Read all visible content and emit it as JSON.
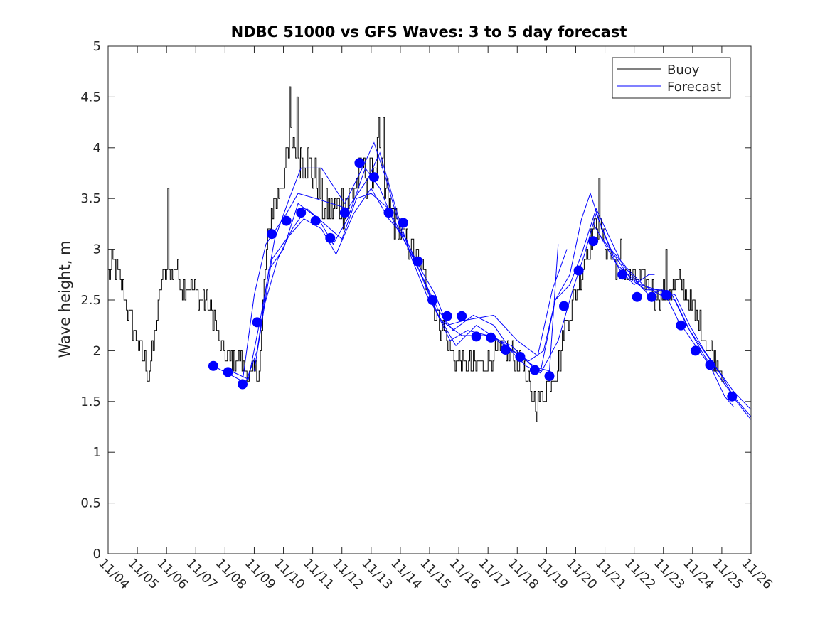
{
  "chart_data": {
    "type": "line",
    "title": "NDBC 51000 vs GFS Waves: 3 to 5 day forecast",
    "xlabel": "",
    "ylabel": "Wave height, m",
    "ylim": [
      0,
      5
    ],
    "xlim_days": [
      0,
      22
    ],
    "y_ticks": [
      "0",
      "0.5",
      "1",
      "1.5",
      "2",
      "2.5",
      "3",
      "3.5",
      "4",
      "4.5",
      "5"
    ],
    "x_ticks": [
      "11/04",
      "11/05",
      "11/06",
      "11/07",
      "11/08",
      "11/09",
      "11/10",
      "11/11",
      "11/12",
      "11/13",
      "11/14",
      "11/15",
      "11/16",
      "11/17",
      "11/18",
      "11/19",
      "11/20",
      "11/21",
      "11/22",
      "11/23",
      "11/24",
      "11/25",
      "11/26"
    ],
    "legend": {
      "position": "top-right",
      "entries": [
        {
          "label": "Buoy",
          "color": "#000000"
        },
        {
          "label": "Forecast",
          "color": "#0000ff"
        }
      ]
    },
    "buoy_color": "#000000",
    "forecast_color": "#0000ff",
    "buoy_anchors": [
      [
        0.0,
        2.75
      ],
      [
        0.15,
        2.85
      ],
      [
        0.45,
        2.65
      ],
      [
        0.7,
        2.35
      ],
      [
        0.95,
        2.15
      ],
      [
        1.25,
        1.9
      ],
      [
        1.38,
        1.75
      ],
      [
        1.55,
        2.05
      ],
      [
        1.75,
        2.55
      ],
      [
        1.95,
        2.8
      ],
      [
        2.1,
        2.75
      ],
      [
        2.3,
        2.85
      ],
      [
        2.55,
        2.6
      ],
      [
        2.8,
        2.65
      ],
      [
        3.0,
        2.55
      ],
      [
        3.3,
        2.5
      ],
      [
        3.6,
        2.35
      ],
      [
        3.85,
        2.0
      ],
      [
        4.1,
        1.9
      ],
      [
        4.4,
        1.95
      ],
      [
        4.7,
        1.8
      ],
      [
        4.9,
        1.72
      ],
      [
        5.1,
        1.8
      ],
      [
        5.2,
        1.9
      ],
      [
        5.35,
        2.75
      ],
      [
        5.55,
        3.35
      ],
      [
        5.8,
        3.55
      ],
      [
        6.1,
        3.85
      ],
      [
        6.3,
        4.1
      ],
      [
        6.5,
        3.95
      ],
      [
        6.8,
        3.9
      ],
      [
        7.1,
        3.7
      ],
      [
        7.4,
        3.4
      ],
      [
        7.6,
        3.35
      ],
      [
        7.9,
        3.4
      ],
      [
        8.2,
        3.5
      ],
      [
        8.45,
        3.6
      ],
      [
        8.7,
        3.8
      ],
      [
        8.95,
        3.7
      ],
      [
        9.2,
        3.9
      ],
      [
        9.4,
        3.6
      ],
      [
        9.65,
        3.4
      ],
      [
        9.9,
        3.25
      ],
      [
        10.15,
        3.1
      ],
      [
        10.4,
        3.0
      ],
      [
        10.7,
        2.85
      ],
      [
        10.95,
        2.6
      ],
      [
        11.2,
        2.4
      ],
      [
        11.45,
        2.2
      ],
      [
        11.7,
        2.0
      ],
      [
        11.95,
        1.9
      ],
      [
        12.3,
        1.85
      ],
      [
        12.7,
        1.85
      ],
      [
        13.1,
        1.95
      ],
      [
        13.5,
        2.0
      ],
      [
        13.9,
        1.95
      ],
      [
        14.2,
        1.9
      ],
      [
        14.4,
        1.6
      ],
      [
        14.6,
        1.5
      ],
      [
        14.8,
        1.55
      ],
      [
        15.0,
        1.65
      ],
      [
        15.2,
        1.75
      ],
      [
        15.4,
        1.85
      ],
      [
        15.6,
        2.2
      ],
      [
        15.9,
        2.45
      ],
      [
        16.1,
        2.7
      ],
      [
        16.3,
        2.9
      ],
      [
        16.5,
        3.1
      ],
      [
        16.7,
        3.3
      ],
      [
        16.9,
        3.1
      ],
      [
        17.1,
        3.0
      ],
      [
        17.4,
        2.85
      ],
      [
        17.7,
        2.75
      ],
      [
        18.1,
        2.7
      ],
      [
        18.4,
        2.65
      ],
      [
        18.7,
        2.55
      ],
      [
        19.0,
        2.55
      ],
      [
        19.3,
        2.6
      ],
      [
        19.55,
        2.7
      ],
      [
        19.8,
        2.55
      ],
      [
        20.1,
        2.35
      ],
      [
        20.4,
        2.15
      ],
      [
        20.7,
        1.95
      ],
      [
        20.95,
        1.85
      ],
      [
        21.1,
        1.7
      ]
    ],
    "buoy_spikes": [
      [
        2.05,
        3.6
      ],
      [
        6.2,
        4.6
      ],
      [
        6.45,
        4.5
      ],
      [
        9.25,
        4.3
      ],
      [
        9.4,
        4.3
      ],
      [
        14.65,
        1.3
      ],
      [
        16.8,
        3.7
      ],
      [
        17.55,
        3.1
      ],
      [
        19.1,
        3.0
      ]
    ],
    "forecast_markers": [
      [
        3.6,
        1.85
      ],
      [
        4.1,
        1.79
      ],
      [
        4.6,
        1.67
      ],
      [
        5.1,
        2.28
      ],
      [
        5.6,
        3.15
      ],
      [
        6.1,
        3.28
      ],
      [
        6.6,
        3.36
      ],
      [
        7.1,
        3.28
      ],
      [
        7.6,
        3.11
      ],
      [
        8.1,
        3.36
      ],
      [
        8.6,
        3.85
      ],
      [
        9.1,
        3.71
      ],
      [
        9.6,
        3.36
      ],
      [
        10.1,
        3.26
      ],
      [
        10.6,
        2.88
      ],
      [
        11.1,
        2.5
      ],
      [
        11.6,
        2.34
      ],
      [
        12.1,
        2.34
      ],
      [
        12.6,
        2.14
      ],
      [
        13.1,
        2.13
      ],
      [
        13.6,
        2.01
      ],
      [
        14.1,
        1.94
      ],
      [
        14.6,
        1.81
      ],
      [
        15.1,
        1.75
      ],
      [
        15.6,
        2.44
      ],
      [
        16.1,
        2.79
      ],
      [
        16.6,
        3.08
      ],
      [
        17.6,
        2.75
      ],
      [
        18.1,
        2.53
      ],
      [
        18.6,
        2.53
      ],
      [
        19.1,
        2.55
      ],
      [
        19.6,
        2.25
      ],
      [
        20.1,
        2.0
      ],
      [
        20.6,
        1.86
      ],
      [
        21.35,
        1.55
      ]
    ],
    "forecast_runs": [
      {
        "name": "run-a",
        "points": [
          [
            3.6,
            1.85
          ],
          [
            4.6,
            1.7
          ],
          [
            5.0,
            2.55
          ],
          [
            5.4,
            3.05
          ],
          [
            6.1,
            3.35
          ],
          [
            6.5,
            3.55
          ],
          [
            7.1,
            3.5
          ],
          [
            8.2,
            3.4
          ],
          [
            8.9,
            3.7
          ],
          [
            9.3,
            3.95
          ],
          [
            9.9,
            3.35
          ],
          [
            10.4,
            2.9
          ],
          [
            10.9,
            2.55
          ],
          [
            11.4,
            2.3
          ],
          [
            12.1,
            2.15
          ],
          [
            13.0,
            2.15
          ],
          [
            13.8,
            2.05
          ],
          [
            14.5,
            1.85
          ],
          [
            15.1,
            1.8
          ],
          [
            15.4,
            3.05
          ]
        ]
      },
      {
        "name": "run-b",
        "points": [
          [
            4.2,
            1.8
          ],
          [
            4.8,
            1.72
          ],
          [
            5.2,
            2.3
          ],
          [
            5.7,
            3.1
          ],
          [
            6.2,
            3.5
          ],
          [
            6.6,
            3.8
          ],
          [
            7.3,
            3.8
          ],
          [
            8.1,
            3.45
          ],
          [
            8.7,
            3.8
          ],
          [
            9.1,
            4.05
          ],
          [
            9.5,
            3.7
          ],
          [
            10.0,
            3.2
          ],
          [
            10.7,
            2.8
          ],
          [
            11.2,
            2.55
          ],
          [
            11.6,
            2.25
          ],
          [
            12.2,
            2.3
          ],
          [
            13.2,
            2.35
          ],
          [
            14.0,
            2.1
          ],
          [
            14.7,
            1.95
          ],
          [
            15.2,
            2.6
          ],
          [
            15.7,
            3.0
          ]
        ]
      },
      {
        "name": "run-c",
        "points": [
          [
            4.7,
            1.68
          ],
          [
            5.1,
            2.0
          ],
          [
            5.5,
            2.8
          ],
          [
            6.0,
            3.0
          ],
          [
            6.5,
            3.45
          ],
          [
            7.2,
            3.3
          ],
          [
            7.7,
            3.05
          ],
          [
            8.2,
            3.3
          ],
          [
            8.8,
            3.8
          ],
          [
            9.3,
            3.6
          ],
          [
            9.8,
            3.25
          ],
          [
            10.3,
            3.0
          ],
          [
            10.8,
            2.7
          ],
          [
            11.3,
            2.4
          ],
          [
            11.8,
            2.2
          ],
          [
            12.5,
            2.35
          ],
          [
            13.2,
            2.25
          ],
          [
            13.8,
            2.0
          ],
          [
            14.4,
            1.9
          ],
          [
            14.9,
            2.0
          ],
          [
            15.3,
            2.5
          ],
          [
            15.8,
            2.75
          ],
          [
            16.2,
            3.3
          ],
          [
            16.5,
            3.55
          ],
          [
            16.9,
            3.2
          ],
          [
            17.4,
            2.85
          ],
          [
            18.0,
            2.7
          ],
          [
            18.5,
            2.55
          ],
          [
            19.0,
            2.6
          ],
          [
            19.5,
            2.3
          ],
          [
            20.1,
            2.05
          ],
          [
            20.6,
            1.85
          ],
          [
            21.1,
            1.55
          ],
          [
            21.4,
            1.45
          ]
        ]
      },
      {
        "name": "run-d",
        "points": [
          [
            5.3,
            2.4
          ],
          [
            5.8,
            2.9
          ],
          [
            6.3,
            3.2
          ],
          [
            6.8,
            3.4
          ],
          [
            7.4,
            3.25
          ],
          [
            8.0,
            3.1
          ],
          [
            8.5,
            3.5
          ],
          [
            9.0,
            3.55
          ],
          [
            9.6,
            3.4
          ],
          [
            10.2,
            3.05
          ],
          [
            10.8,
            2.7
          ],
          [
            11.3,
            2.35
          ],
          [
            11.9,
            2.05
          ],
          [
            12.6,
            2.25
          ],
          [
            13.4,
            2.1
          ],
          [
            14.1,
            1.95
          ],
          [
            14.8,
            1.8
          ],
          [
            15.3,
            2.5
          ],
          [
            15.8,
            2.65
          ],
          [
            16.2,
            2.95
          ],
          [
            16.7,
            3.4
          ],
          [
            17.1,
            3.15
          ],
          [
            17.6,
            2.85
          ],
          [
            18.2,
            2.65
          ],
          [
            18.8,
            2.6
          ],
          [
            19.3,
            2.55
          ],
          [
            19.8,
            2.25
          ],
          [
            20.4,
            1.95
          ],
          [
            20.9,
            1.75
          ],
          [
            21.4,
            1.55
          ],
          [
            22.0,
            1.35
          ]
        ]
      },
      {
        "name": "run-e",
        "points": [
          [
            5.0,
            1.8
          ],
          [
            5.6,
            2.9
          ],
          [
            6.1,
            3.1
          ],
          [
            6.7,
            3.3
          ],
          [
            7.3,
            3.2
          ],
          [
            7.8,
            2.95
          ],
          [
            8.4,
            3.35
          ],
          [
            9.0,
            3.6
          ],
          [
            9.6,
            3.3
          ],
          [
            10.2,
            3.1
          ],
          [
            10.7,
            2.75
          ],
          [
            11.2,
            2.4
          ],
          [
            11.7,
            2.1
          ],
          [
            12.3,
            2.2
          ],
          [
            13.0,
            2.15
          ],
          [
            13.6,
            2.05
          ],
          [
            14.3,
            1.85
          ],
          [
            14.8,
            1.78
          ],
          [
            15.4,
            2.1
          ],
          [
            15.9,
            2.6
          ],
          [
            16.3,
            2.95
          ],
          [
            16.7,
            3.35
          ],
          [
            17.2,
            3.0
          ],
          [
            17.8,
            2.8
          ],
          [
            18.3,
            2.65
          ],
          [
            18.9,
            2.55
          ],
          [
            19.4,
            2.5
          ],
          [
            19.9,
            2.2
          ],
          [
            20.5,
            1.95
          ],
          [
            21.0,
            1.75
          ],
          [
            21.5,
            1.5
          ],
          [
            22.0,
            1.32
          ]
        ]
      },
      {
        "name": "run-f",
        "points": [
          [
            16.8,
            3.15
          ],
          [
            17.3,
            2.95
          ],
          [
            17.9,
            2.7
          ],
          [
            18.4,
            2.6
          ],
          [
            18.9,
            2.6
          ],
          [
            19.4,
            2.55
          ],
          [
            19.9,
            2.25
          ],
          [
            20.4,
            2.0
          ],
          [
            20.9,
            1.8
          ],
          [
            21.4,
            1.6
          ],
          [
            22.0,
            1.42
          ]
        ]
      },
      {
        "name": "run-g",
        "points": [
          [
            16.6,
            3.25
          ],
          [
            17.0,
            3.05
          ],
          [
            17.5,
            2.8
          ],
          [
            18.0,
            2.65
          ],
          [
            18.5,
            2.75
          ],
          [
            18.7,
            2.75
          ]
        ]
      }
    ]
  }
}
